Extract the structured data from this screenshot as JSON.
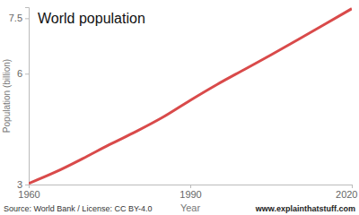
{
  "chart_data": {
    "type": "line",
    "title": "World population",
    "x_label": "Year",
    "y_label": "Population (billion)",
    "x": [
      1960,
      1965,
      1970,
      1975,
      1980,
      1985,
      1990,
      1995,
      2000,
      2005,
      2010,
      2015,
      2020
    ],
    "values": [
      3.03,
      3.34,
      3.7,
      4.08,
      4.44,
      4.83,
      5.28,
      5.71,
      6.11,
      6.51,
      6.92,
      7.34,
      7.76
    ],
    "color": "#d94a4a",
    "xlim": [
      1960,
      2020
    ],
    "xticks": [
      1960,
      1990,
      2020
    ],
    "ylim": [
      3,
      7.8
    ],
    "yticks": [
      3,
      6,
      7.5
    ],
    "grid": false,
    "annotations": [
      "Source: World Bank / License: CC BY-4.0",
      "www.explainthatstuff.com"
    ]
  }
}
